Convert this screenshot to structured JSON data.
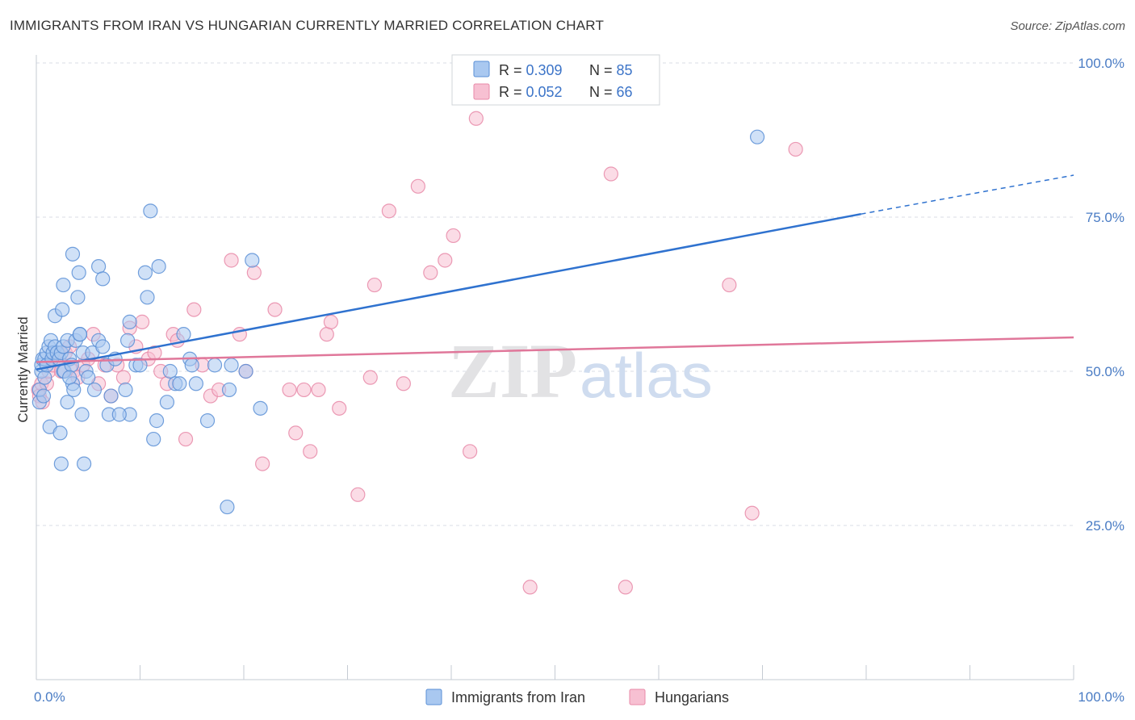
{
  "title": "IMMIGRANTS FROM IRAN VS HUNGARIAN CURRENTLY MARRIED CORRELATION CHART",
  "source": "Source: ZipAtlas.com",
  "watermark": {
    "zip": "ZIP",
    "atlas": "atlas"
  },
  "legend": {
    "rows": [
      {
        "r_label": "R = ",
        "r_value": "0.309",
        "n_label": "N = ",
        "n_value": "85"
      },
      {
        "r_label": "R = ",
        "r_value": "0.052",
        "n_label": "N = ",
        "n_value": "66"
      }
    ]
  },
  "colors": {
    "iran_fill": "#a9c8f0",
    "iran_stroke": "#5a8fd6",
    "iran_line": "#2f72cf",
    "hung_fill": "#f7c0d2",
    "hung_stroke": "#e88aa8",
    "hung_line": "#e0779a",
    "grid": "#d8dde6",
    "axis_text": "#4a7cc4"
  },
  "chart_data": {
    "type": "scatter",
    "title": "IMMIGRANTS FROM IRAN VS HUNGARIAN CURRENTLY MARRIED CORRELATION CHART",
    "xlabel": "",
    "ylabel": "Currently Married",
    "xlim": [
      0,
      100
    ],
    "ylim": [
      0,
      100
    ],
    "x_tick_labels": [
      "0.0%",
      "100.0%"
    ],
    "y_tick_labels": [
      "25.0%",
      "50.0%",
      "75.0%",
      "100.0%"
    ],
    "y_ticks": [
      25,
      50,
      75,
      100
    ],
    "grid": true,
    "legend_position": "top-center",
    "series": [
      {
        "name": "Immigrants from Iran",
        "R": 0.309,
        "N": 85,
        "trend": {
          "x0": 0,
          "y0": 50.3,
          "x1": 79.5,
          "y1": 75.5,
          "dash_x1": 100,
          "dash_y1": 81.8
        },
        "points": [
          [
            0.3,
            45
          ],
          [
            0.3,
            47
          ],
          [
            0.5,
            50
          ],
          [
            0.5,
            51
          ],
          [
            0.6,
            52
          ],
          [
            0.8,
            49
          ],
          [
            0.8,
            52
          ],
          [
            1.0,
            53
          ],
          [
            1.0,
            51
          ],
          [
            1.2,
            54
          ],
          [
            1.4,
            55
          ],
          [
            1.5,
            52
          ],
          [
            1.6,
            53
          ],
          [
            1.8,
            54
          ],
          [
            2.0,
            53
          ],
          [
            2.2,
            52
          ],
          [
            2.4,
            53
          ],
          [
            2.6,
            54
          ],
          [
            1.3,
            41
          ],
          [
            1.8,
            59
          ],
          [
            2.5,
            60
          ],
          [
            2.6,
            50
          ],
          [
            3.0,
            55
          ],
          [
            3.2,
            52
          ],
          [
            2.7,
            50
          ],
          [
            3.4,
            51
          ],
          [
            3.5,
            48
          ],
          [
            3.8,
            55
          ],
          [
            4.2,
            56
          ],
          [
            4.5,
            53
          ],
          [
            4.8,
            50
          ],
          [
            5.0,
            49
          ],
          [
            5.4,
            53
          ],
          [
            5.6,
            47
          ],
          [
            6.0,
            55
          ],
          [
            6.4,
            54
          ],
          [
            6.8,
            51
          ],
          [
            7.2,
            46
          ],
          [
            7.6,
            52
          ],
          [
            4.2,
            56
          ],
          [
            4.0,
            62
          ],
          [
            4.1,
            66
          ],
          [
            3.5,
            69
          ],
          [
            2.6,
            64
          ],
          [
            3.2,
            49
          ],
          [
            3.0,
            45
          ],
          [
            3.6,
            47
          ],
          [
            4.4,
            43
          ],
          [
            7.0,
            43
          ],
          [
            9.0,
            43
          ],
          [
            9.6,
            51
          ],
          [
            10.0,
            51
          ],
          [
            10.5,
            66
          ],
          [
            10.7,
            62
          ],
          [
            11.0,
            76
          ],
          [
            11.8,
            67
          ],
          [
            11.6,
            42
          ],
          [
            11.3,
            39
          ],
          [
            12.6,
            45
          ],
          [
            12.9,
            50
          ],
          [
            13.4,
            48
          ],
          [
            13.8,
            48
          ],
          [
            14.2,
            56
          ],
          [
            14.8,
            52
          ],
          [
            15.4,
            48
          ],
          [
            15.0,
            51
          ],
          [
            16.5,
            42
          ],
          [
            17.2,
            51
          ],
          [
            18.6,
            47
          ],
          [
            18.8,
            51
          ],
          [
            20.2,
            50
          ],
          [
            20.8,
            68
          ],
          [
            21.6,
            44
          ],
          [
            18.4,
            28
          ],
          [
            2.3,
            40
          ],
          [
            2.4,
            35
          ],
          [
            4.6,
            35
          ],
          [
            6.0,
            67
          ],
          [
            6.4,
            65
          ],
          [
            8.0,
            43
          ],
          [
            8.6,
            47
          ],
          [
            8.8,
            55
          ],
          [
            9.0,
            58
          ],
          [
            69.5,
            88
          ],
          [
            0.7,
            46
          ]
        ]
      },
      {
        "name": "Hungarians",
        "R": 0.052,
        "N": 66,
        "trend": {
          "x0": 0,
          "y0": 51.5,
          "x1": 100,
          "y1": 55.5
        },
        "points": [
          [
            0.2,
            47
          ],
          [
            0.3,
            46
          ],
          [
            0.5,
            48
          ],
          [
            0.6,
            45
          ],
          [
            1.0,
            48
          ],
          [
            1.2,
            50
          ],
          [
            1.6,
            51
          ],
          [
            2.0,
            52
          ],
          [
            2.4,
            50
          ],
          [
            2.8,
            53
          ],
          [
            3.2,
            54
          ],
          [
            3.6,
            50
          ],
          [
            4.0,
            49
          ],
          [
            4.5,
            51
          ],
          [
            5.0,
            52
          ],
          [
            5.5,
            56
          ],
          [
            6.0,
            48
          ],
          [
            6.6,
            51
          ],
          [
            7.2,
            46
          ],
          [
            7.8,
            51
          ],
          [
            8.4,
            49
          ],
          [
            9.0,
            57
          ],
          [
            9.6,
            54
          ],
          [
            10.2,
            58
          ],
          [
            10.8,
            52
          ],
          [
            11.4,
            53
          ],
          [
            12.0,
            50
          ],
          [
            12.6,
            48
          ],
          [
            13.2,
            56
          ],
          [
            13.6,
            55
          ],
          [
            14.4,
            39
          ],
          [
            15.2,
            60
          ],
          [
            16.0,
            51
          ],
          [
            16.8,
            46
          ],
          [
            17.6,
            47
          ],
          [
            18.8,
            68
          ],
          [
            19.6,
            56
          ],
          [
            20.2,
            50
          ],
          [
            21.0,
            66
          ],
          [
            21.8,
            35
          ],
          [
            23.0,
            60
          ],
          [
            24.4,
            47
          ],
          [
            25.0,
            40
          ],
          [
            25.8,
            47
          ],
          [
            26.4,
            37
          ],
          [
            27.2,
            47
          ],
          [
            28.0,
            56
          ],
          [
            28.4,
            58
          ],
          [
            29.2,
            44
          ],
          [
            31.0,
            30
          ],
          [
            32.6,
            64
          ],
          [
            32.2,
            49
          ],
          [
            34.0,
            76
          ],
          [
            35.4,
            48
          ],
          [
            36.8,
            80
          ],
          [
            38.0,
            66
          ],
          [
            39.4,
            68
          ],
          [
            40.2,
            72
          ],
          [
            41.8,
            37
          ],
          [
            42.4,
            91
          ],
          [
            47.6,
            15
          ],
          [
            55.4,
            82
          ],
          [
            56.8,
            15
          ],
          [
            66.8,
            64
          ],
          [
            69.0,
            27
          ],
          [
            73.2,
            86
          ]
        ]
      }
    ]
  },
  "bottom_legend": [
    "Immigrants from Iran",
    "Hungarians"
  ]
}
